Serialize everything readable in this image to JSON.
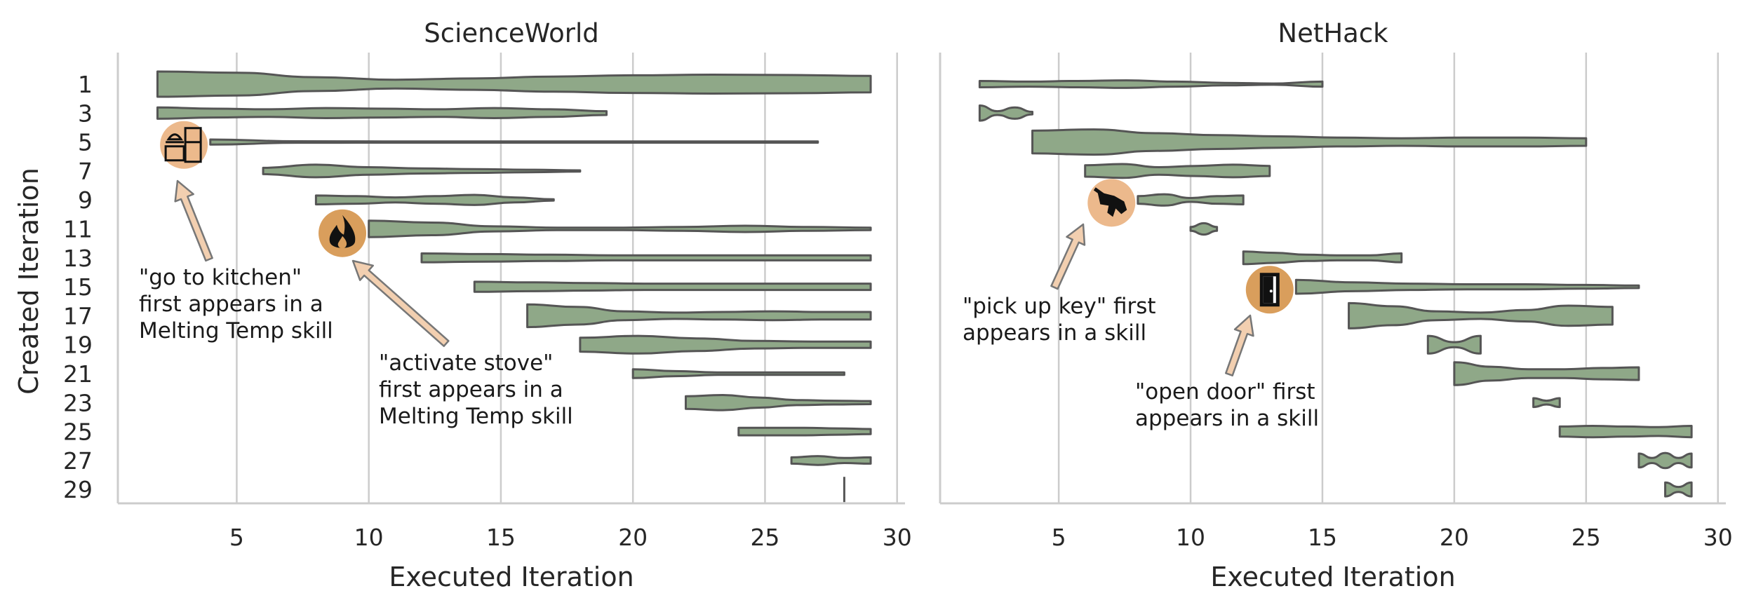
{
  "colors": {
    "violin_fill": "#8fa888",
    "violin_edge": "#555555",
    "grid": "#cccccc",
    "spine": "#cccccc",
    "badge_light": "#ecb98c",
    "badge_dark": "#d99e5c",
    "arrow_fill": "#f2cfb0",
    "arrow_edge": "#777777"
  },
  "y_axis_label": "Created Iteration",
  "y_ticks": [
    "1",
    "3",
    "5",
    "7",
    "9",
    "11",
    "13",
    "15",
    "17",
    "19",
    "21",
    "23",
    "25",
    "27",
    "29"
  ],
  "chart_data": [
    {
      "type": "violin",
      "title": "ScienceWorld",
      "xlabel": "Executed Iteration",
      "ylabel": "Created Iteration",
      "xlim": [
        0.5,
        30.3
      ],
      "x_ticks": [
        5,
        10,
        15,
        20,
        25,
        30
      ],
      "orientation": "horizontal",
      "grid": "vertical",
      "violins": [
        {
          "created": 1,
          "range": [
            2,
            29
          ],
          "profile": [
            1.0,
            0.9,
            0.55,
            0.35,
            0.45,
            0.6,
            0.7,
            0.75,
            0.72,
            0.65
          ]
        },
        {
          "created": 3,
          "range": [
            2,
            19
          ],
          "profile": [
            0.45,
            0.35,
            0.3,
            0.4,
            0.35,
            0.3,
            0.4,
            0.3,
            0.15
          ]
        },
        {
          "created": 5,
          "range": [
            4,
            27
          ],
          "profile": [
            0.2,
            0.06,
            0.05,
            0.05,
            0.05,
            0.05,
            0.05,
            0.05
          ]
        },
        {
          "created": 7,
          "range": [
            6,
            18
          ],
          "profile": [
            0.25,
            0.5,
            0.3,
            0.2,
            0.15,
            0.1,
            0.05
          ]
        },
        {
          "created": 9,
          "range": [
            8,
            17
          ],
          "profile": [
            0.35,
            0.3,
            0.2,
            0.3,
            0.4,
            0.2,
            0.05
          ]
        },
        {
          "created": 11,
          "range": [
            10,
            29
          ],
          "profile": [
            0.65,
            0.5,
            0.2,
            0.1,
            0.1,
            0.15,
            0.25,
            0.15,
            0.1
          ]
        },
        {
          "created": 13,
          "range": [
            12,
            29
          ],
          "profile": [
            0.35,
            0.3,
            0.25,
            0.2,
            0.2,
            0.2,
            0.2,
            0.2
          ]
        },
        {
          "created": 15,
          "range": [
            14,
            29
          ],
          "profile": [
            0.4,
            0.35,
            0.3,
            0.25,
            0.25,
            0.25,
            0.25,
            0.25
          ]
        },
        {
          "created": 17,
          "range": [
            16,
            29
          ],
          "profile": [
            0.9,
            0.7,
            0.35,
            0.25,
            0.3,
            0.35,
            0.3,
            0.3
          ]
        },
        {
          "created": 19,
          "range": [
            18,
            29
          ],
          "profile": [
            0.55,
            0.7,
            0.5,
            0.3,
            0.25,
            0.25
          ]
        },
        {
          "created": 21,
          "range": [
            20,
            28
          ],
          "profile": [
            0.35,
            0.2,
            0.1,
            0.1,
            0.1,
            0.1
          ]
        },
        {
          "created": 23,
          "range": [
            22,
            29
          ],
          "profile": [
            0.5,
            0.6,
            0.4,
            0.2,
            0.15,
            0.12
          ]
        },
        {
          "created": 25,
          "range": [
            24,
            29
          ],
          "profile": [
            0.3,
            0.3,
            0.3,
            0.25,
            0.2
          ]
        },
        {
          "created": 27,
          "range": [
            26,
            29
          ],
          "profile": [
            0.25,
            0.35,
            0.2,
            0.25
          ]
        },
        {
          "created": 29,
          "range": [
            28,
            28
          ],
          "profile": [
            1.0
          ]
        }
      ],
      "annotations": [
        {
          "text": [
            "\"go to kitchen\"",
            "first appears in a",
            "Melting Temp skill"
          ],
          "icon": "kitchen-icon",
          "icon_at": [
            3,
            5.2
          ]
        },
        {
          "text": [
            "\"activate stove\"",
            "first appears in a",
            "Melting Temp skill"
          ],
          "icon": "fire-icon",
          "icon_at": [
            9,
            11.3
          ]
        }
      ]
    },
    {
      "type": "violin",
      "title": "NetHack",
      "xlabel": "Executed Iteration",
      "xlim": [
        0.5,
        30.3
      ],
      "x_ticks": [
        5,
        10,
        15,
        20,
        25,
        30
      ],
      "orientation": "horizontal",
      "grid": "vertical",
      "violins": [
        {
          "created": 1,
          "range": [
            2,
            15
          ],
          "profile": [
            0.25,
            0.2,
            0.25,
            0.3,
            0.2,
            0.1,
            0.05,
            0.2
          ]
        },
        {
          "created": 3,
          "range": [
            2,
            4
          ],
          "profile": [
            0.6,
            0.15,
            0.45,
            0.1
          ]
        },
        {
          "created": 5,
          "range": [
            4,
            25
          ],
          "profile": [
            0.9,
            1.0,
            0.7,
            0.55,
            0.45,
            0.35,
            0.3,
            0.35,
            0.35,
            0.3
          ]
        },
        {
          "created": 7,
          "range": [
            6,
            13
          ],
          "profile": [
            0.45,
            0.55,
            0.3,
            0.4,
            0.5,
            0.4
          ]
        },
        {
          "created": 9,
          "range": [
            8,
            12
          ],
          "profile": [
            0.3,
            0.45,
            0.15,
            0.3,
            0.35
          ]
        },
        {
          "created": 11,
          "range": [
            10,
            11
          ],
          "profile": [
            0.15,
            0.45,
            0.15
          ]
        },
        {
          "created": 13,
          "range": [
            12,
            18
          ],
          "profile": [
            0.5,
            0.4,
            0.25,
            0.2,
            0.2,
            0.35
          ]
        },
        {
          "created": 15,
          "range": [
            14,
            27
          ],
          "profile": [
            0.55,
            0.35,
            0.25,
            0.2,
            0.2,
            0.15,
            0.1
          ]
        },
        {
          "created": 17,
          "range": [
            16,
            26
          ],
          "profile": [
            1.0,
            0.75,
            0.35,
            0.25,
            0.45,
            0.8,
            0.7
          ]
        },
        {
          "created": 19,
          "range": [
            19,
            21
          ],
          "profile": [
            0.7,
            0.2,
            0.7
          ]
        },
        {
          "created": 21,
          "range": [
            20,
            27
          ],
          "profile": [
            0.9,
            0.55,
            0.35,
            0.35,
            0.45,
            0.5
          ]
        },
        {
          "created": 23,
          "range": [
            23,
            24
          ],
          "profile": [
            0.35,
            0.15,
            0.35
          ]
        },
        {
          "created": 25,
          "range": [
            24,
            29
          ],
          "profile": [
            0.4,
            0.45,
            0.4,
            0.35,
            0.45
          ]
        },
        {
          "created": 27,
          "range": [
            27,
            29
          ],
          "profile": [
            0.55,
            0.2,
            0.6,
            0.2,
            0.55
          ]
        },
        {
          "created": 29,
          "range": [
            28,
            29
          ],
          "profile": [
            0.55,
            0.2,
            0.55
          ]
        }
      ],
      "annotations": [
        {
          "text": [
            "\"pick up key\" first",
            "appears in a skill"
          ],
          "icon": "hand-icon",
          "icon_at": [
            7,
            9.2
          ]
        },
        {
          "text": [
            "\"open door\" first",
            "appears in a skill"
          ],
          "icon": "door-icon",
          "icon_at": [
            13,
            15.2
          ]
        }
      ]
    }
  ]
}
